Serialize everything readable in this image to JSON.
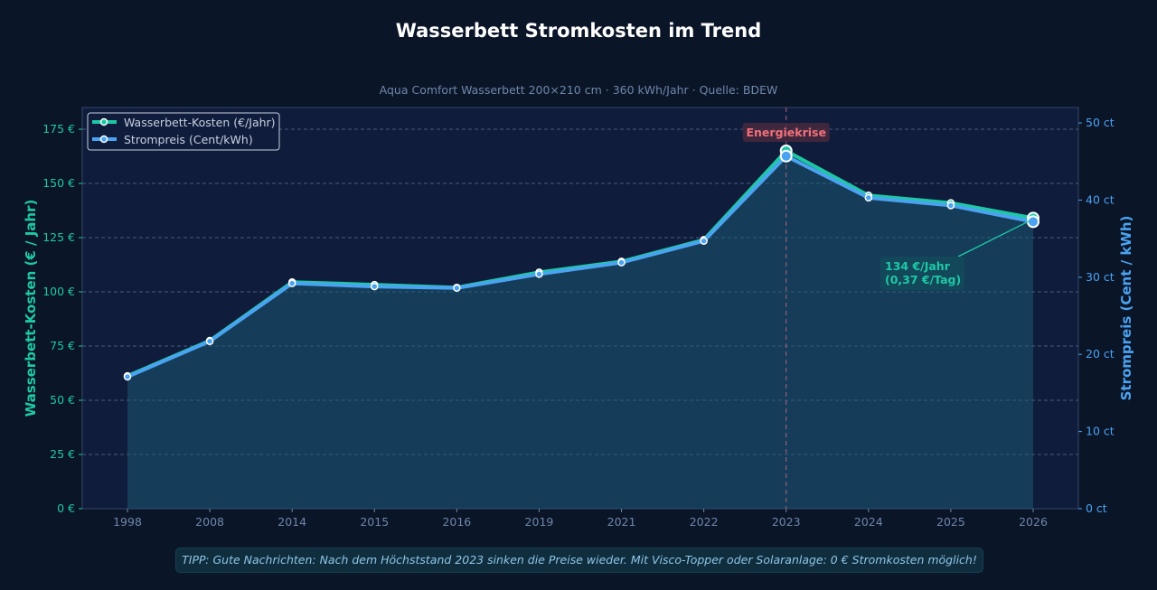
{
  "chart_data": {
    "type": "line",
    "title": "Wasserbett Stromkosten im Trend",
    "subtitle": "Aqua Comfort Wasserbett 200×210 cm · 360 kWh/Jahr · Quelle: BDEW",
    "categories": [
      "1998",
      "2008",
      "2014",
      "2015",
      "2016",
      "2019",
      "2021",
      "2022",
      "2023",
      "2024",
      "2025",
      "2026"
    ],
    "series": [
      {
        "name": "Wasserbett-Kosten (€/Jahr)",
        "axis": "left",
        "color": "#1ec8a5",
        "values": [
          61.2,
          77.5,
          104.5,
          103.3,
          102,
          109,
          114,
          124,
          165,
          144.5,
          141,
          134
        ]
      },
      {
        "name": "Strompreis (Cent/kWh)",
        "axis": "right",
        "color": "#4aa3f0",
        "values": [
          17.1,
          21.7,
          29.2,
          28.8,
          28.6,
          30.4,
          31.9,
          34.7,
          45.7,
          40.3,
          39.3,
          37.2
        ]
      }
    ],
    "ylabel": "Wasserbett-Kosten (€ / Jahr)",
    "ylabel_right": "Strompreis (Cent / kWh)",
    "ylim": [
      0,
      185
    ],
    "ylim_right": [
      0,
      52
    ],
    "yticks": [
      "0 €",
      "25 €",
      "50 €",
      "75 €",
      "100 €",
      "125 €",
      "150 €",
      "175 €"
    ],
    "ytick_values": [
      0,
      25,
      50,
      75,
      100,
      125,
      150,
      175
    ],
    "yticks_right": [
      "0 ct",
      "10 ct",
      "20 ct",
      "30 ct",
      "40 ct",
      "50 ct"
    ],
    "ytick_values_right": [
      0,
      10,
      20,
      30,
      40,
      50
    ],
    "grid": true,
    "legend": "top-left",
    "annotations": {
      "crisis": "Energiekrise",
      "crisis_year": "2023",
      "last": "134 €/Jahr",
      "last_daily": "(0,37 €/Tag)"
    }
  },
  "tip": "TIPP: Gute Nachrichten: Nach dem Höchststand 2023 sinken die Preise wieder. Mit Visco-Topper oder Solaranlage: 0 € Stromkosten möglich!"
}
